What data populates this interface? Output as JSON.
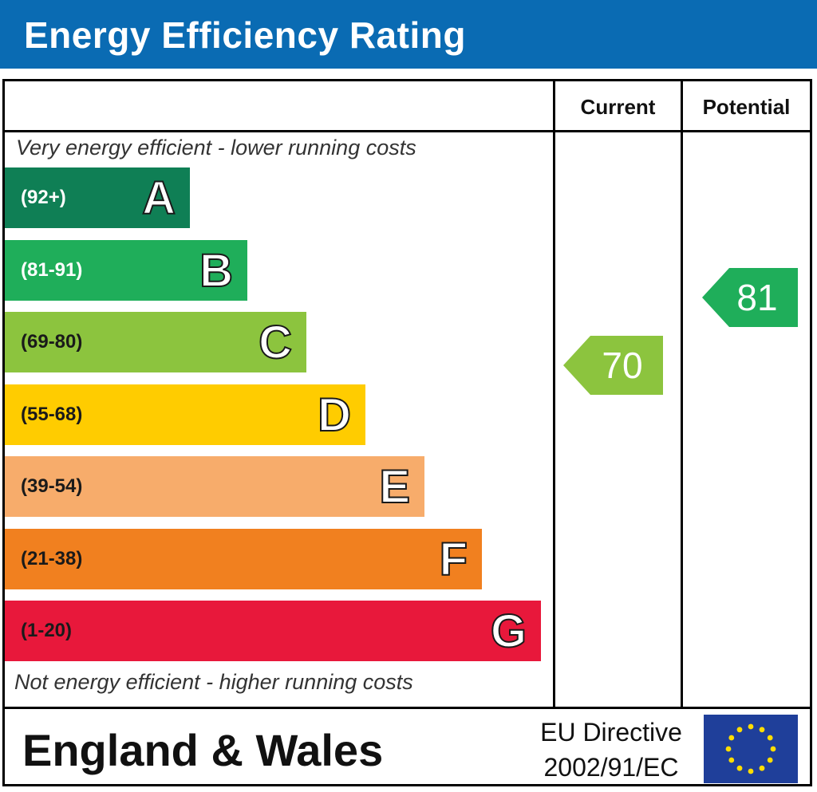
{
  "header": {
    "title": "Energy Efficiency Rating"
  },
  "columns": {
    "current": "Current",
    "potential": "Potential"
  },
  "notes": {
    "top": "Very energy efficient - lower running costs",
    "bottom": "Not energy efficient - higher running costs"
  },
  "chart_data": {
    "type": "bar",
    "title": "Energy Efficiency Rating",
    "categories": [
      "A",
      "B",
      "C",
      "D",
      "E",
      "F",
      "G"
    ],
    "bands": [
      {
        "letter": "A",
        "range": "(92+)",
        "color": "#0f7f55",
        "range_color": "#ffffff"
      },
      {
        "letter": "B",
        "range": "(81-91)",
        "color": "#1fae5a",
        "range_color": "#ffffff"
      },
      {
        "letter": "C",
        "range": "(69-80)",
        "color": "#8cc43e",
        "range_color": "#1a1a1a"
      },
      {
        "letter": "D",
        "range": "(55-68)",
        "color": "#ffcc00",
        "range_color": "#1a1a1a"
      },
      {
        "letter": "E",
        "range": "(39-54)",
        "color": "#f7ac6b",
        "range_color": "#1a1a1a"
      },
      {
        "letter": "F",
        "range": "(21-38)",
        "color": "#f1801f",
        "range_color": "#1a1a1a"
      },
      {
        "letter": "G",
        "range": "(1-20)",
        "color": "#e8183b",
        "range_color": "#1a1a1a"
      }
    ],
    "current": {
      "value": 70,
      "band": "C",
      "color": "#8cc43e"
    },
    "potential": {
      "value": 81,
      "band": "B",
      "color": "#1fae5a"
    }
  },
  "footer": {
    "region": "England & Wales",
    "directive_line1": "EU Directive",
    "directive_line2": "2002/91/EC",
    "flag_icon": "eu-flag-icon"
  }
}
